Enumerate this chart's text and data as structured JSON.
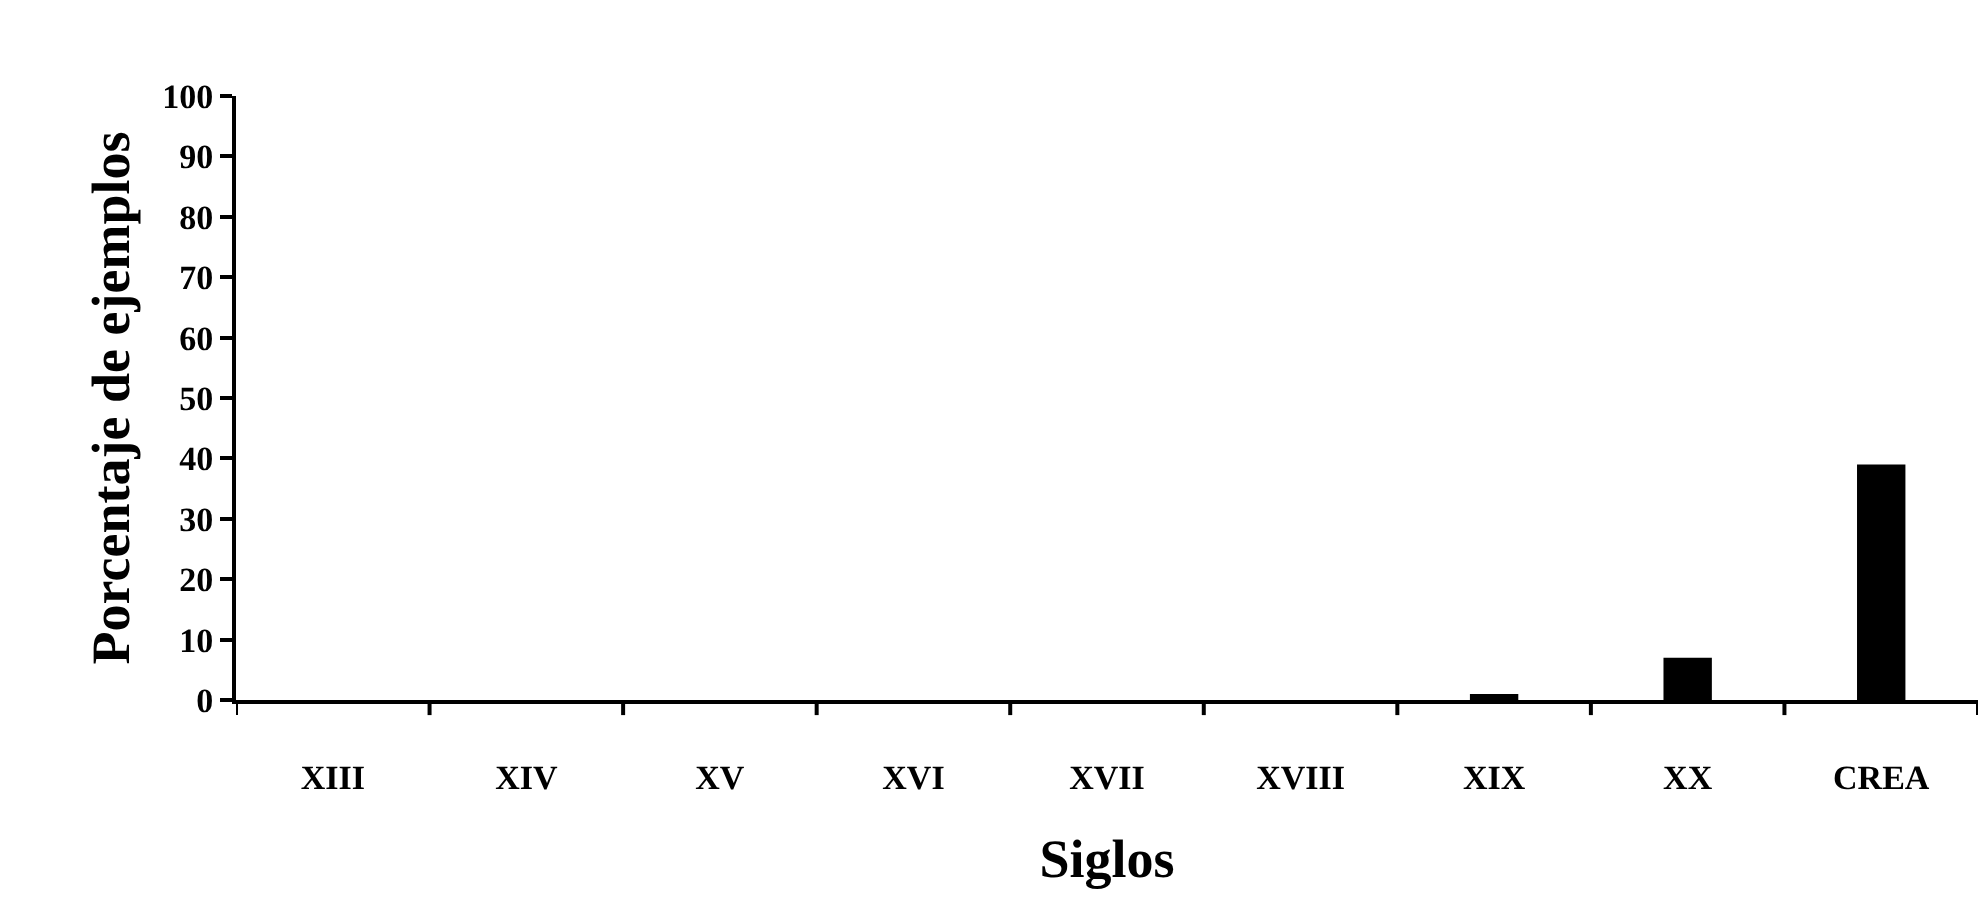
{
  "chart_data": {
    "type": "bar",
    "xlabel": "Siglos",
    "ylabel": "Porcentaje de ejemplos",
    "categories": [
      "XIII",
      "XIV",
      "XV",
      "XVI",
      "XVII",
      "XVIII",
      "XIX",
      "XX",
      "CREA"
    ],
    "values": [
      0,
      0,
      0,
      0,
      0,
      0,
      1,
      7,
      39
    ],
    "color": "#000000",
    "ylim": [
      0,
      100
    ],
    "yticks": [
      0,
      10,
      20,
      30,
      40,
      50,
      60,
      70,
      80,
      90,
      100
    ],
    "grid": false,
    "legend": false
  }
}
